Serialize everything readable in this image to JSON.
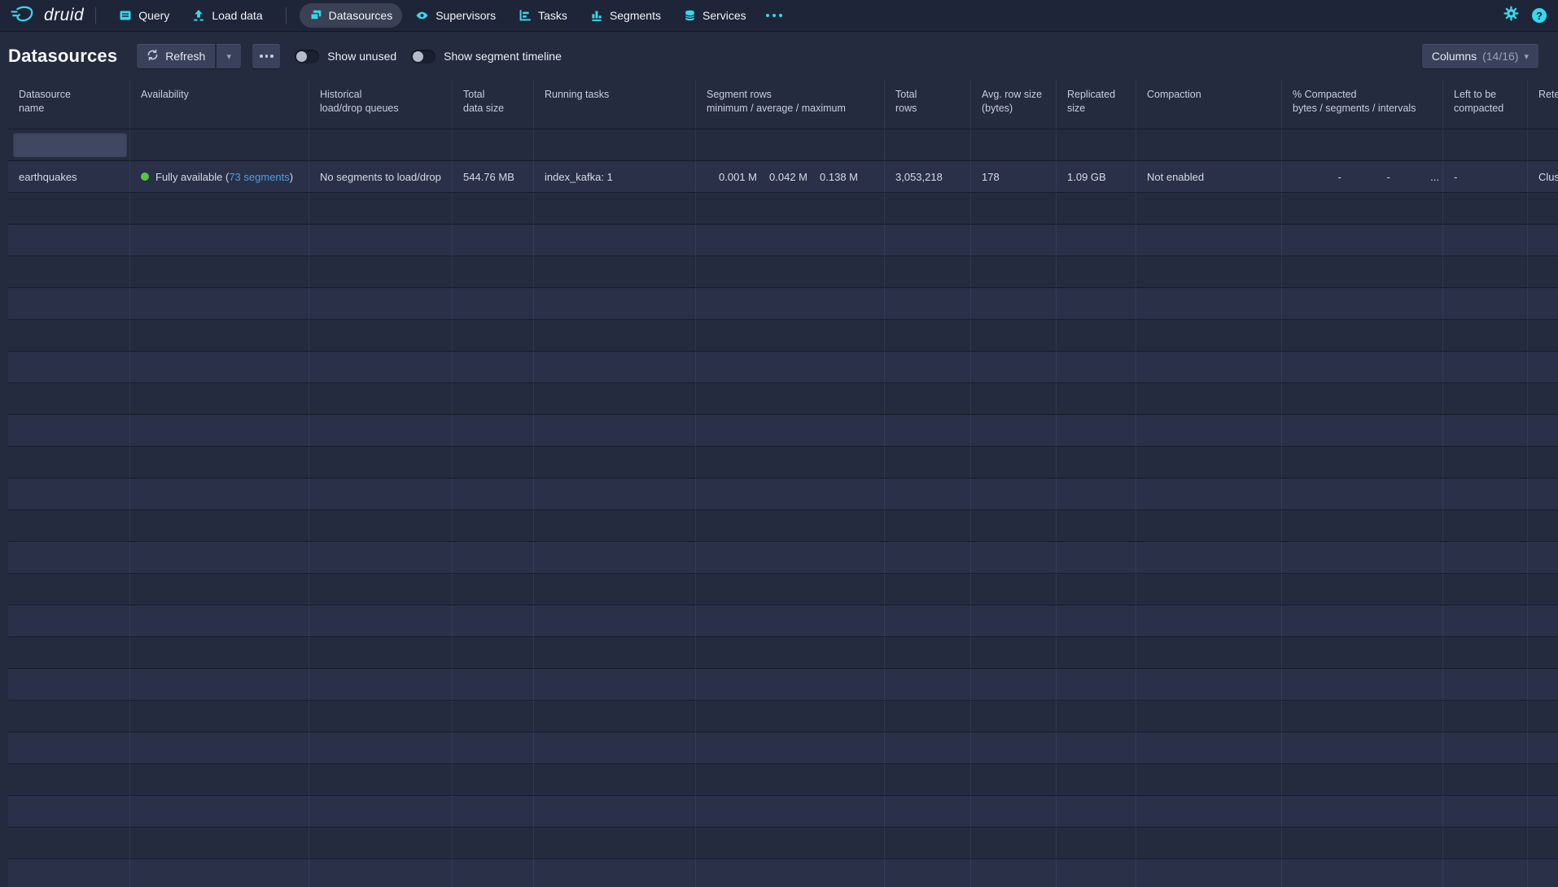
{
  "colors": {
    "accent": "#36d8ec",
    "link": "#4d9fe0",
    "green": "#5ac545",
    "nav_bg": "#1f2538",
    "pill_bg": "#3a4154"
  },
  "nav": {
    "brand": "druid",
    "items": [
      {
        "label": "Query",
        "icon": "console-icon",
        "active": false
      },
      {
        "label": "Load data",
        "icon": "upload-icon",
        "active": false,
        "divider_after": true
      },
      {
        "label": "Datasources",
        "icon": "datasources-icon",
        "active": true
      },
      {
        "label": "Supervisors",
        "icon": "eye-icon",
        "active": false
      },
      {
        "label": "Tasks",
        "icon": "gantt-chart-icon",
        "active": false
      },
      {
        "label": "Segments",
        "icon": "bar-chart-icon",
        "active": false
      },
      {
        "label": "Services",
        "icon": "database-icon",
        "active": false
      }
    ],
    "help_glyph": "?"
  },
  "toolbar": {
    "title": "Datasources",
    "refresh_label": "Refresh",
    "toggles": [
      {
        "label": "Show unused",
        "on": false
      },
      {
        "label": "Show segment timeline",
        "on": false
      }
    ],
    "columns_label": "Columns",
    "columns_count": "(14/16)"
  },
  "table": {
    "columns": [
      {
        "lines": [
          "Datasource",
          "name"
        ]
      },
      {
        "lines": [
          "Availability"
        ]
      },
      {
        "lines": [
          "Historical",
          "load/drop queues"
        ]
      },
      {
        "lines": [
          "Total",
          "data size"
        ]
      },
      {
        "lines": [
          "Running tasks"
        ]
      },
      {
        "lines": [
          "Segment rows",
          "minimum / average / maximum"
        ]
      },
      {
        "lines": [
          "Total",
          "rows"
        ]
      },
      {
        "lines": [
          "Avg. row size",
          "(bytes)"
        ]
      },
      {
        "lines": [
          "Replicated",
          "size"
        ]
      },
      {
        "lines": [
          "Compaction"
        ]
      },
      {
        "lines": [
          "% Compacted",
          "bytes / segments / intervals"
        ]
      },
      {
        "lines": [
          "Left to be",
          "compacted"
        ]
      },
      {
        "lines": [
          "Retention"
        ]
      }
    ],
    "filter_value": "",
    "row": {
      "datasource": "earthquakes",
      "availability_prefix": "Fully available (",
      "availability_link": "73 segments",
      "availability_suffix": ")",
      "load_drop": "No segments to load/drop",
      "total_data_size": "544.76 MB",
      "running_tasks": "index_kafka: 1",
      "segment_rows": [
        "0.001 M",
        "0.042 M",
        "0.138 M"
      ],
      "total_rows": "3,053,218",
      "avg_row_size": "178",
      "replicated_size": "1.09 GB",
      "compaction": "Not enabled",
      "percent_compacted": [
        "-",
        "-",
        "..."
      ],
      "left_to_be_compacted": "-",
      "retention": "Cluster default"
    },
    "empty_row_count": 22
  }
}
